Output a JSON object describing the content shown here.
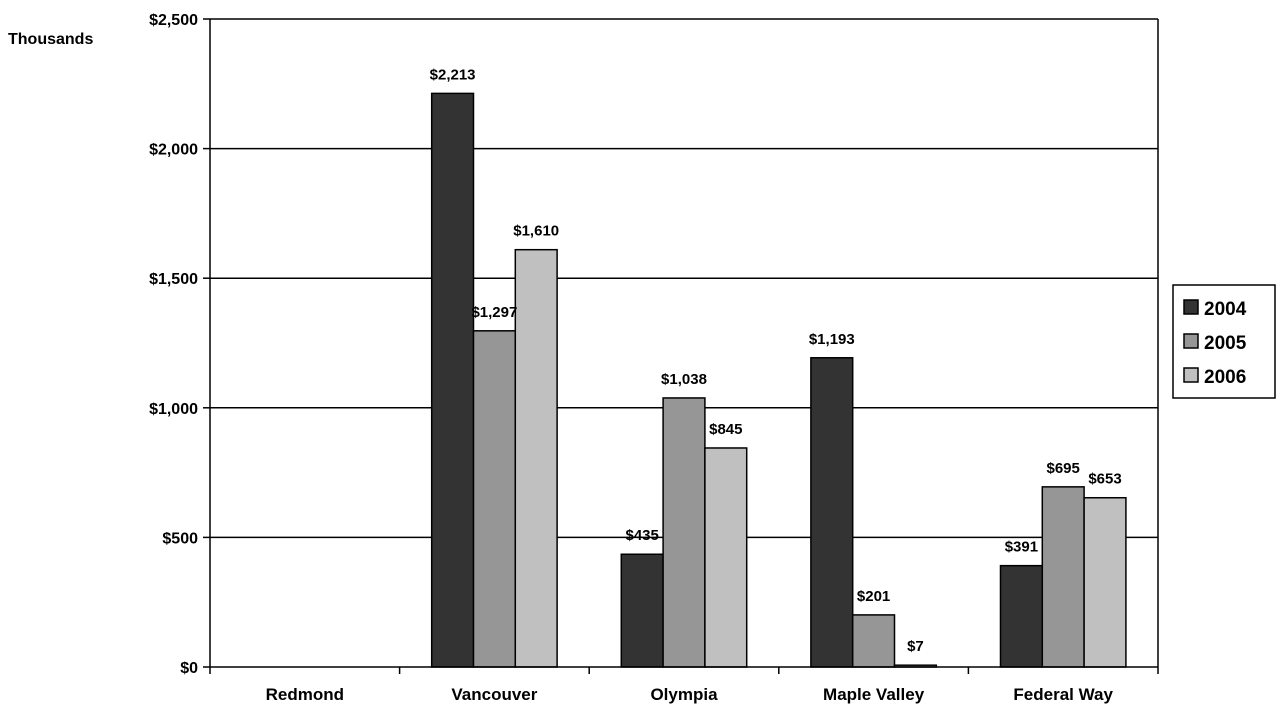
{
  "chart_data": {
    "type": "bar",
    "unit_label": "Thousands",
    "categories": [
      "Redmond",
      "Vancouver",
      "Olympia",
      "Maple Valley",
      "Federal Way"
    ],
    "series": [
      {
        "name": "2004",
        "color": "#333333",
        "values": [
          null,
          2213,
          435,
          1193,
          391
        ],
        "labels": [
          null,
          "$2,213",
          "$435",
          "$1,193",
          "$391"
        ]
      },
      {
        "name": "2005",
        "color": "#969696",
        "values": [
          null,
          1297,
          1038,
          201,
          695
        ],
        "labels": [
          null,
          "$1,297",
          "$1,038",
          "$201",
          "$695"
        ]
      },
      {
        "name": "2006",
        "color": "#c0c0c0",
        "values": [
          null,
          1610,
          845,
          7,
          653
        ],
        "labels": [
          null,
          "$1,610",
          "$845",
          "$7",
          "$653"
        ]
      }
    ],
    "ylim": [
      0,
      2500
    ],
    "yticks": [
      0,
      500,
      1000,
      1500,
      2000,
      2500
    ],
    "ytick_labels": [
      "$0",
      "$500",
      "$1,000",
      "$1,500",
      "$2,000",
      "$2,500"
    ],
    "grid": true,
    "legend_position": "right"
  }
}
